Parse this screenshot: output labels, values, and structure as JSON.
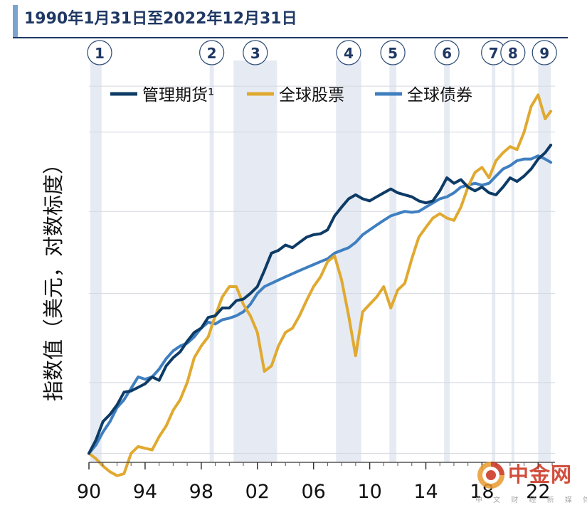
{
  "header": {
    "title": "1990年1月31日至2022年12月31日"
  },
  "watermark": {
    "brand": "中金网",
    "sub": "中 文 财 经 新 媒 体"
  },
  "colors": {
    "managed_futures": "#0d3b66",
    "equities": "#e0a930",
    "bonds": "#3f7fc0",
    "shade": "#e6ebf3",
    "title": "#1f3864"
  },
  "chart_data": {
    "type": "line",
    "title": "",
    "xlabel": "",
    "ylabel": "指数值（美元，对数标度）",
    "yscale": "log",
    "xlim": [
      1990.0,
      2023.2
    ],
    "ylim": [
      0.95,
      9.5
    ],
    "x_ticks": [
      1990,
      1994,
      1998,
      2002,
      2006,
      2010,
      2014,
      2018,
      2022
    ],
    "x_tick_labels": [
      "90",
      "94",
      "98",
      "02",
      "06",
      "10",
      "14",
      "18",
      "22"
    ],
    "grid": "horizontal",
    "legend": "top-left",
    "events": [
      {
        "label": "1",
        "start": 1990.1,
        "end": 1990.9
      },
      {
        "label": "2",
        "start": 1998.6,
        "end": 1998.9
      },
      {
        "label": "3",
        "start": 2000.3,
        "end": 2003.4
      },
      {
        "label": "4",
        "start": 2007.6,
        "end": 2009.4
      },
      {
        "label": "5",
        "start": 2011.4,
        "end": 2011.9
      },
      {
        "label": "6",
        "start": 2015.3,
        "end": 2015.7
      },
      {
        "label": "7",
        "start": 2018.7,
        "end": 2018.95
      },
      {
        "label": "8",
        "start": 2020.1,
        "end": 2020.3
      },
      {
        "label": "9",
        "start": 2022.0,
        "end": 2022.9
      }
    ],
    "series": [
      {
        "name": "管理期货¹",
        "key": "managed_futures",
        "x": [
          1990.0,
          1990.5,
          1991.0,
          1991.5,
          1992.0,
          1992.5,
          1993.0,
          1993.5,
          1994.0,
          1994.5,
          1995.0,
          1995.5,
          1996.0,
          1996.5,
          1997.0,
          1997.5,
          1998.0,
          1998.5,
          1999.0,
          1999.5,
          2000.0,
          2000.5,
          2001.0,
          2001.5,
          2002.0,
          2002.5,
          2003.0,
          2003.5,
          2004.0,
          2004.5,
          2005.0,
          2005.5,
          2006.0,
          2006.5,
          2007.0,
          2007.5,
          2008.0,
          2008.5,
          2009.0,
          2009.5,
          2010.0,
          2010.5,
          2011.0,
          2011.5,
          2012.0,
          2012.5,
          2013.0,
          2013.5,
          2014.0,
          2014.5,
          2015.0,
          2015.5,
          2016.0,
          2016.5,
          2017.0,
          2017.5,
          2018.0,
          2018.5,
          2019.0,
          2019.5,
          2020.0,
          2020.5,
          2021.0,
          2021.5,
          2022.0,
          2022.5,
          2022.9
        ],
        "values": [
          1.0,
          1.08,
          1.2,
          1.25,
          1.32,
          1.42,
          1.43,
          1.46,
          1.49,
          1.55,
          1.52,
          1.65,
          1.73,
          1.79,
          1.9,
          2.0,
          2.05,
          2.18,
          2.2,
          2.3,
          2.3,
          2.4,
          2.42,
          2.5,
          2.6,
          2.85,
          3.15,
          3.2,
          3.3,
          3.25,
          3.35,
          3.45,
          3.5,
          3.52,
          3.6,
          3.9,
          4.1,
          4.3,
          4.4,
          4.3,
          4.25,
          4.35,
          4.45,
          4.55,
          4.45,
          4.4,
          4.35,
          4.25,
          4.2,
          4.25,
          4.5,
          4.85,
          4.7,
          4.8,
          4.6,
          4.5,
          4.6,
          4.45,
          4.4,
          4.6,
          4.85,
          4.75,
          4.9,
          5.1,
          5.4,
          5.6,
          5.85
        ]
      },
      {
        "name": "全球股票",
        "key": "equities",
        "x": [
          1990.0,
          1990.5,
          1991.0,
          1991.5,
          1992.0,
          1992.5,
          1993.0,
          1993.5,
          1994.0,
          1994.5,
          1995.0,
          1995.5,
          1996.0,
          1996.5,
          1997.0,
          1997.5,
          1998.0,
          1998.5,
          1999.0,
          1999.5,
          2000.0,
          2000.5,
          2001.0,
          2001.5,
          2002.0,
          2002.5,
          2003.0,
          2003.5,
          2004.0,
          2004.5,
          2005.0,
          2005.5,
          2006.0,
          2006.5,
          2007.0,
          2007.5,
          2008.0,
          2008.5,
          2009.0,
          2009.5,
          2010.0,
          2010.5,
          2011.0,
          2011.5,
          2012.0,
          2012.5,
          2013.0,
          2013.5,
          2014.0,
          2014.5,
          2015.0,
          2015.5,
          2016.0,
          2016.5,
          2017.0,
          2017.5,
          2018.0,
          2018.5,
          2019.0,
          2019.5,
          2020.0,
          2020.5,
          2021.0,
          2021.5,
          2022.0,
          2022.5,
          2022.9
        ],
        "values": [
          1.0,
          0.97,
          0.93,
          0.9,
          0.88,
          0.89,
          1.0,
          1.04,
          1.03,
          1.02,
          1.1,
          1.17,
          1.28,
          1.36,
          1.5,
          1.73,
          1.85,
          1.95,
          2.2,
          2.45,
          2.6,
          2.6,
          2.35,
          2.2,
          2.0,
          1.6,
          1.65,
          1.85,
          2.0,
          2.05,
          2.2,
          2.4,
          2.6,
          2.75,
          3.0,
          3.1,
          2.7,
          2.2,
          1.75,
          2.25,
          2.35,
          2.45,
          2.6,
          2.3,
          2.55,
          2.65,
          3.05,
          3.45,
          3.65,
          3.85,
          3.95,
          3.85,
          3.8,
          4.1,
          4.6,
          5.0,
          5.15,
          4.85,
          5.35,
          5.6,
          5.8,
          5.7,
          6.3,
          7.3,
          7.8,
          6.8,
          7.1
        ]
      },
      {
        "name": "全球债券",
        "key": "bonds",
        "x": [
          1990.0,
          1990.5,
          1991.0,
          1991.5,
          1992.0,
          1992.5,
          1993.0,
          1993.5,
          1994.0,
          1994.5,
          1995.0,
          1995.5,
          1996.0,
          1996.5,
          1997.0,
          1997.5,
          1998.0,
          1998.5,
          1999.0,
          1999.5,
          2000.0,
          2000.5,
          2001.0,
          2001.5,
          2002.0,
          2002.5,
          2003.0,
          2003.5,
          2004.0,
          2004.5,
          2005.0,
          2005.5,
          2006.0,
          2006.5,
          2007.0,
          2007.5,
          2008.0,
          2008.5,
          2009.0,
          2009.5,
          2010.0,
          2010.5,
          2011.0,
          2011.5,
          2012.0,
          2012.5,
          2013.0,
          2013.5,
          2014.0,
          2014.5,
          2015.0,
          2015.5,
          2016.0,
          2016.5,
          2017.0,
          2017.5,
          2018.0,
          2018.5,
          2019.0,
          2019.5,
          2020.0,
          2020.5,
          2021.0,
          2021.5,
          2022.0,
          2022.5,
          2022.9
        ],
        "values": [
          1.0,
          1.05,
          1.13,
          1.2,
          1.3,
          1.36,
          1.45,
          1.55,
          1.53,
          1.55,
          1.62,
          1.72,
          1.8,
          1.85,
          1.88,
          1.95,
          2.05,
          2.12,
          2.1,
          2.15,
          2.17,
          2.2,
          2.25,
          2.35,
          2.5,
          2.6,
          2.65,
          2.7,
          2.75,
          2.8,
          2.85,
          2.9,
          2.95,
          3.0,
          3.05,
          3.15,
          3.2,
          3.25,
          3.35,
          3.5,
          3.6,
          3.7,
          3.8,
          3.9,
          3.95,
          4.0,
          3.98,
          4.0,
          4.1,
          4.2,
          4.3,
          4.35,
          4.45,
          4.6,
          4.65,
          4.7,
          4.65,
          4.7,
          4.9,
          5.1,
          5.2,
          5.35,
          5.4,
          5.4,
          5.5,
          5.4,
          5.3
        ]
      }
    ]
  }
}
